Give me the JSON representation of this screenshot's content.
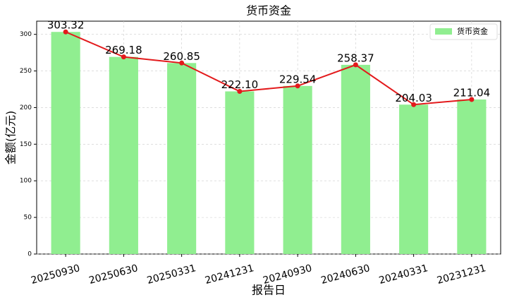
{
  "chart_data": {
    "type": "bar",
    "title": "货币资金",
    "x_label": "报告日",
    "y_label": "金额(亿元)",
    "categories": [
      "20250930",
      "20250630",
      "20250331",
      "20241231",
      "20240930",
      "20240630",
      "20240331",
      "20231231"
    ],
    "series": [
      {
        "name": "货币资金",
        "color": "#90ee90",
        "line_color": "#e31a1c",
        "values": [
          303.32,
          269.18,
          260.85,
          222.1,
          229.54,
          258.37,
          204.03,
          211.04
        ],
        "value_labels": [
          "303.32",
          "269.18",
          "260.85",
          "222.10",
          "229.54",
          "258.37",
          "204.03",
          "211.04"
        ]
      }
    ],
    "ylim": [
      0,
      318
    ],
    "yticks": [
      0,
      50,
      100,
      150,
      200,
      250,
      300
    ],
    "grid": true,
    "legend": "upper right"
  }
}
